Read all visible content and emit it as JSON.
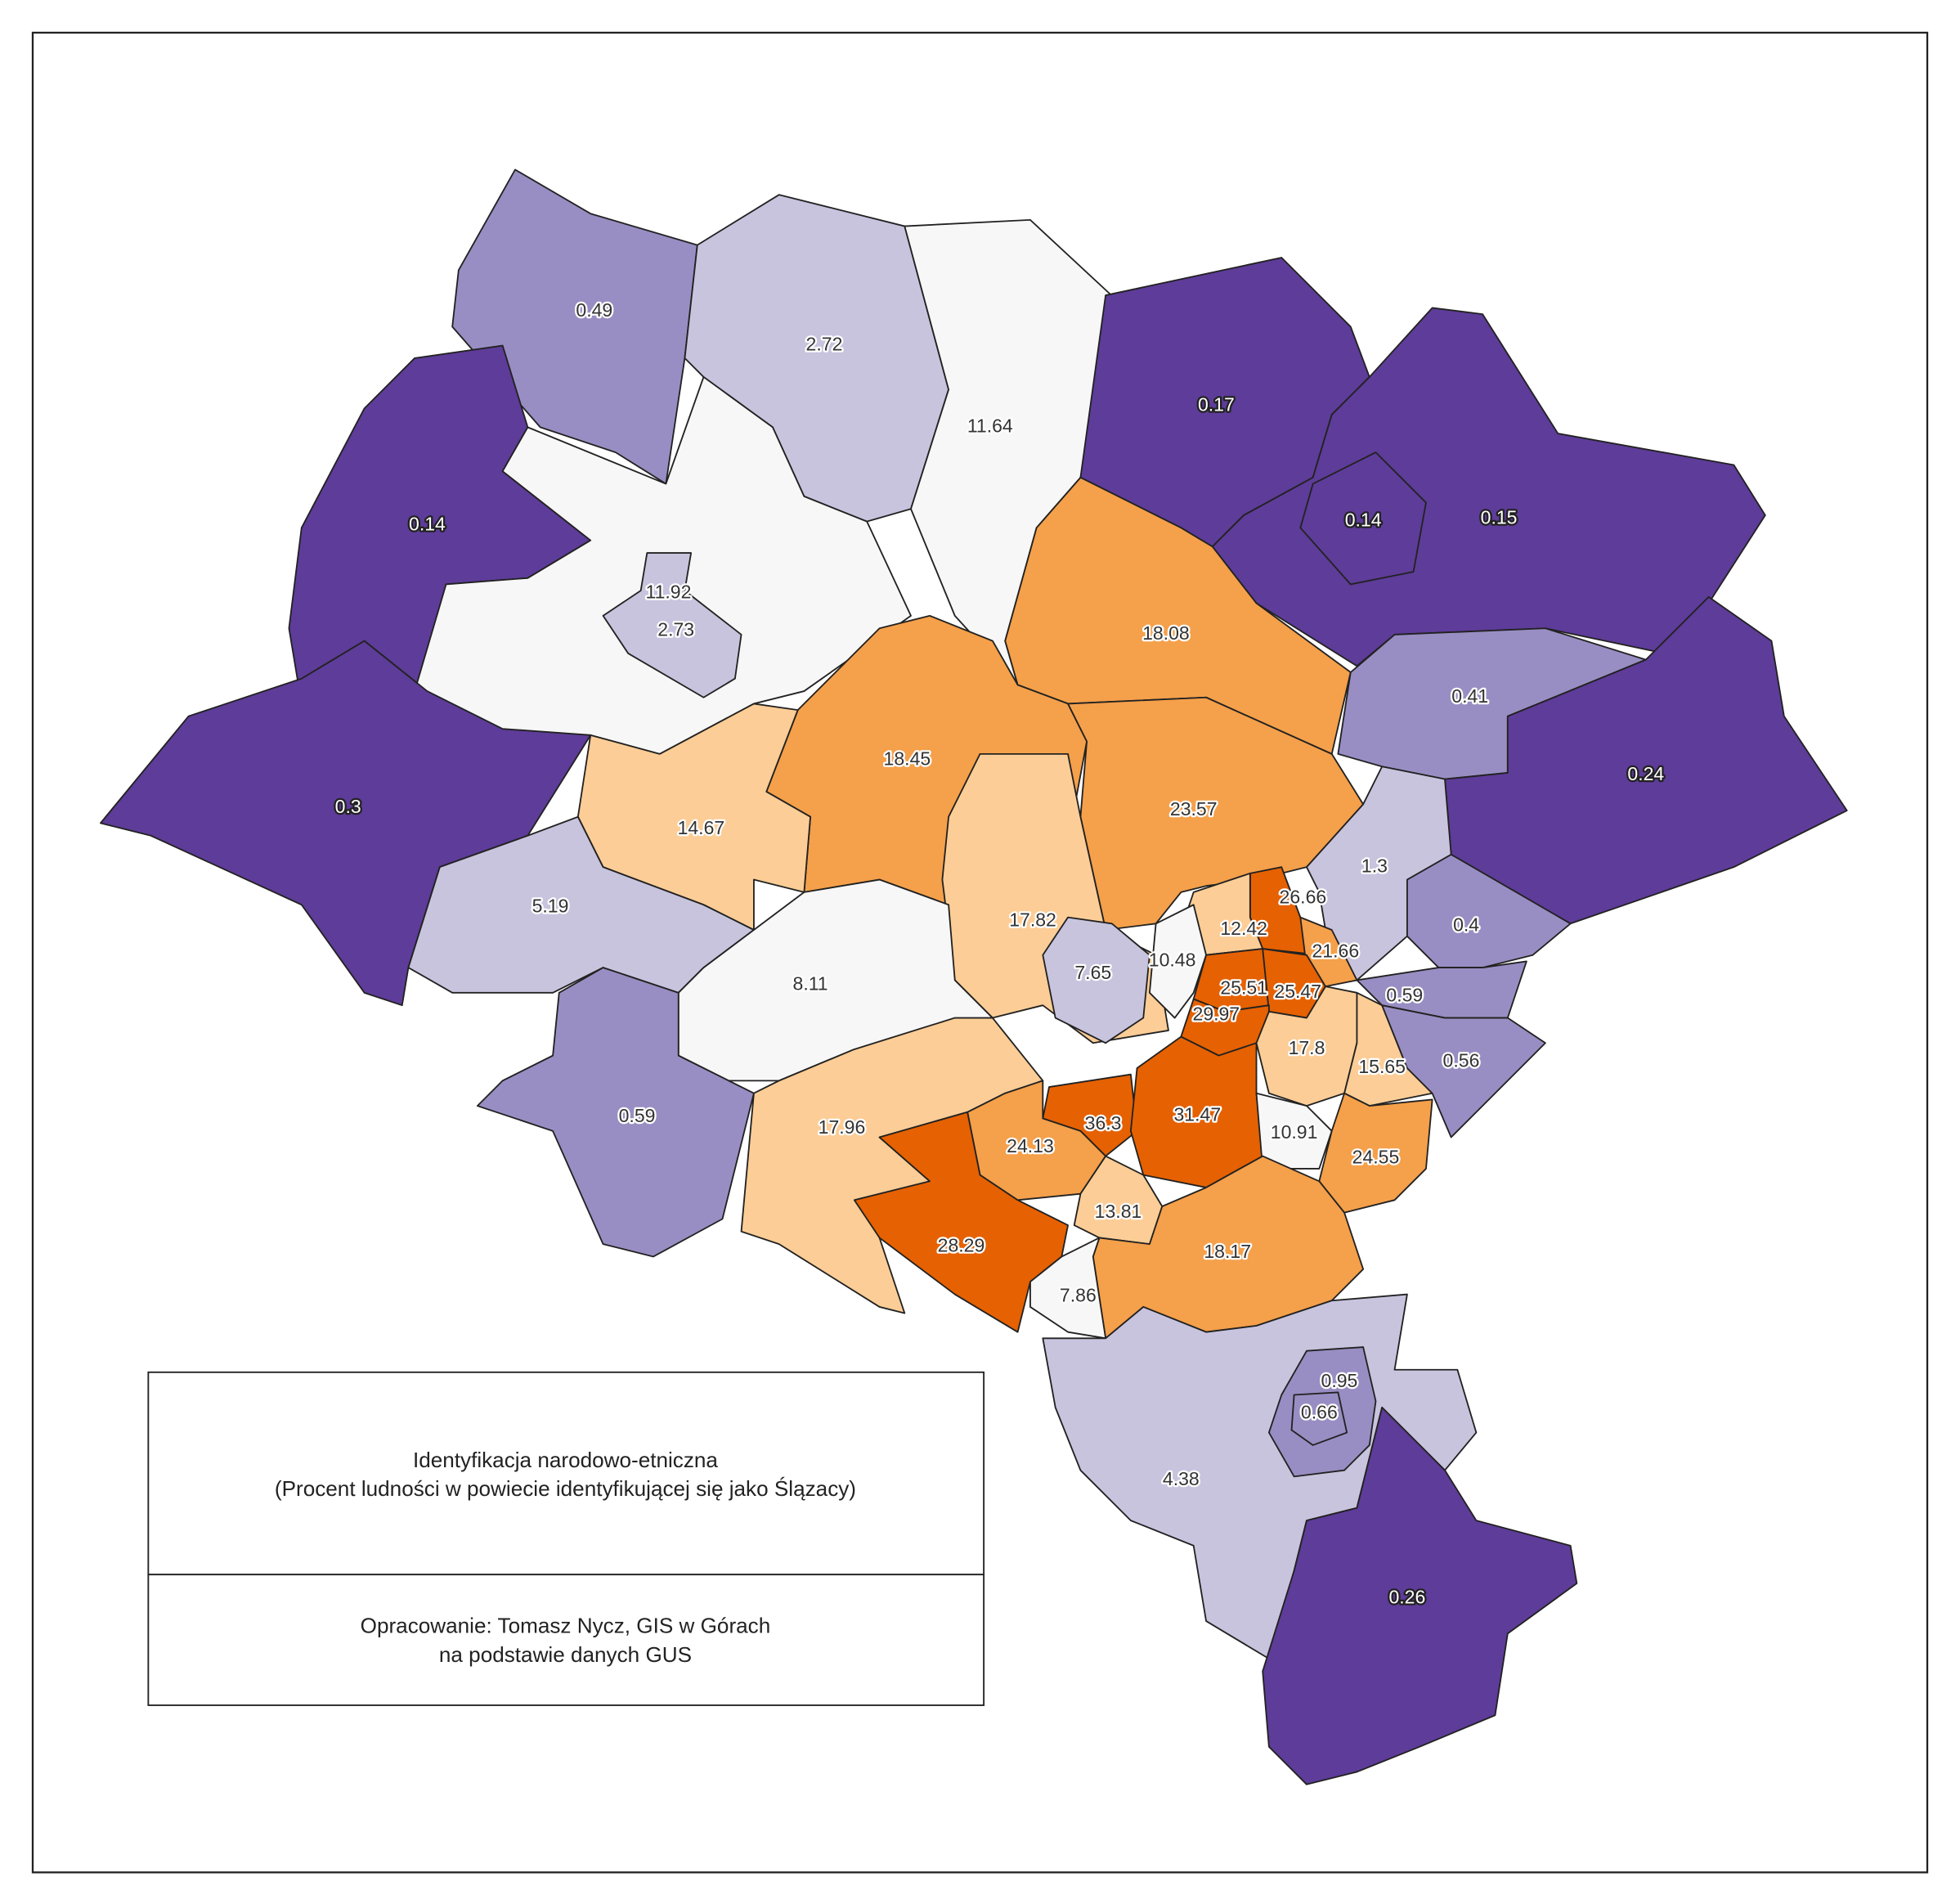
{
  "map": {
    "regions": [
      {
        "value": 0.49,
        "color": "#998ec3"
      },
      {
        "value": 2.72,
        "color": "#c8c4de"
      },
      {
        "value": 11.64,
        "color": "#f7f7f7"
      },
      {
        "value": 0.17,
        "color": "#5e3c99"
      },
      {
        "value": 0.15,
        "color": "#5e3c99"
      },
      {
        "value": 0.14,
        "color": "#5e3c99"
      },
      {
        "value": 0.14,
        "color": "#5e3c99"
      },
      {
        "value": 11.92,
        "color": "#f7f7f7"
      },
      {
        "value": 2.73,
        "color": "#c8c4de"
      },
      {
        "value": 18.08,
        "color": "#f5a04a"
      },
      {
        "value": 0.41,
        "color": "#998ec3"
      },
      {
        "value": 0.24,
        "color": "#5e3c99"
      },
      {
        "value": 0.3,
        "color": "#5e3c99"
      },
      {
        "value": 18.45,
        "color": "#f5a04a"
      },
      {
        "value": 14.67,
        "color": "#fccd96"
      },
      {
        "value": 23.57,
        "color": "#f5a04a"
      },
      {
        "value": 1.3,
        "color": "#c8c4de"
      },
      {
        "value": 26.66,
        "color": "#e66101"
      },
      {
        "value": 5.19,
        "color": "#c8c4de"
      },
      {
        "value": 17.82,
        "color": "#fccd96"
      },
      {
        "value": 12.42,
        "color": "#fccd96"
      },
      {
        "value": 0.4,
        "color": "#998ec3"
      },
      {
        "value": 7.65,
        "color": "#c8c4de"
      },
      {
        "value": 10.48,
        "color": "#f7f7f7"
      },
      {
        "value": 21.66,
        "color": "#f5a04a"
      },
      {
        "value": 25.51,
        "color": "#e66101"
      },
      {
        "value": 25.47,
        "color": "#e66101"
      },
      {
        "value": 0.59,
        "color": "#998ec3"
      },
      {
        "value": 8.11,
        "color": "#f7f7f7"
      },
      {
        "value": 29.97,
        "color": "#e66101"
      },
      {
        "value": 17.8,
        "color": "#fccd96"
      },
      {
        "value": 15.65,
        "color": "#fccd96"
      },
      {
        "value": 0.56,
        "color": "#998ec3"
      },
      {
        "value": 0.59,
        "color": "#998ec3"
      },
      {
        "value": 17.96,
        "color": "#fccd96"
      },
      {
        "value": 36.3,
        "color": "#e66101"
      },
      {
        "value": 31.47,
        "color": "#e66101"
      },
      {
        "value": 10.91,
        "color": "#f7f7f7"
      },
      {
        "value": 24.13,
        "color": "#f5a04a"
      },
      {
        "value": 24.55,
        "color": "#f5a04a"
      },
      {
        "value": 13.81,
        "color": "#fccd96"
      },
      {
        "value": 28.29,
        "color": "#e66101"
      },
      {
        "value": 18.17,
        "color": "#f5a04a"
      },
      {
        "value": 7.86,
        "color": "#f7f7f7"
      },
      {
        "value": 4.38,
        "color": "#c8c4de"
      },
      {
        "value": 0.95,
        "color": "#998ec3"
      },
      {
        "value": 0.66,
        "color": "#998ec3"
      },
      {
        "value": 0.26,
        "color": "#5e3c99"
      }
    ]
  },
  "legend": {
    "title": [
      "Identyfikacja narodowo-etniczna",
      "(Procent ludności w powiecie identyfikującej się jako Ślązacy)"
    ],
    "credit": [
      "Opracowanie: Tomasz Nycz, GIS w Górach",
      "na podstawie danych GUS"
    ]
  }
}
